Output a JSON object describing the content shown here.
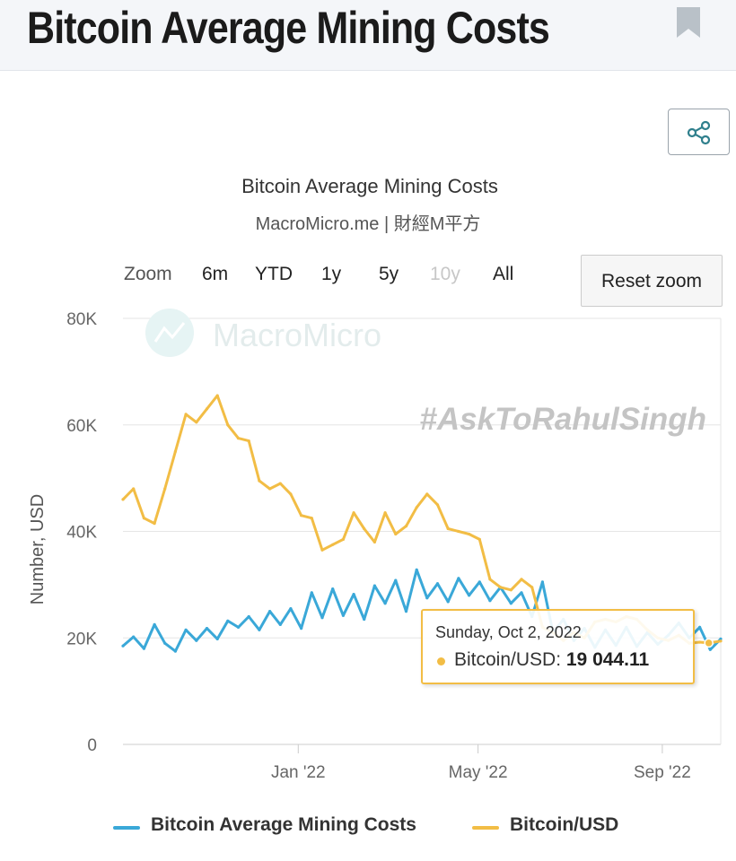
{
  "header": {
    "title": "Bitcoin Average Mining Costs",
    "bookmark_icon": "bookmark-icon"
  },
  "share": {
    "icon": "share-icon",
    "color": "#2f7f8c"
  },
  "chart_header": {
    "title": "Bitcoin Average Mining Costs",
    "subtitle": "MacroMicro.me | 財經M平方"
  },
  "zoom": {
    "label": "Zoom",
    "options": [
      {
        "label": "6m",
        "disabled": false
      },
      {
        "label": "YTD",
        "disabled": false
      },
      {
        "label": "1y",
        "disabled": false
      },
      {
        "label": "5y",
        "disabled": false
      },
      {
        "label": "10y",
        "disabled": true
      },
      {
        "label": "All",
        "disabled": false
      }
    ],
    "reset_label": "Reset zoom"
  },
  "watermarks": {
    "logo": "MacroMicro",
    "tag": "#AskToRahulSingh"
  },
  "tooltip": {
    "date": "Sunday, Oct 2, 2022",
    "series_label": "Bitcoin/USD: ",
    "value": "19 044.11",
    "color": "#f2bd45"
  },
  "legend": {
    "items": [
      {
        "label": "Bitcoin Average Mining Costs",
        "color": "#3aa8d8"
      },
      {
        "label": "Bitcoin/USD",
        "color": "#f2bd45"
      }
    ]
  },
  "chart_data": {
    "type": "line",
    "title": "Bitcoin Average Mining Costs",
    "subtitle": "MacroMicro.me | 財經M平方",
    "ylabel": "Number, USD",
    "xlabel": "",
    "ylim": [
      0,
      80000
    ],
    "xlim": [
      "2021-09-06",
      "2022-10-10"
    ],
    "y_ticks": [
      {
        "value": 0,
        "label": "0"
      },
      {
        "value": 20000,
        "label": "20K"
      },
      {
        "value": 40000,
        "label": "40K"
      },
      {
        "value": 60000,
        "label": "60K"
      },
      {
        "value": 80000,
        "label": "80K"
      }
    ],
    "x_ticks": [
      {
        "date": "2022-01-01",
        "label": "Jan '22"
      },
      {
        "date": "2022-05-01",
        "label": "May '22"
      },
      {
        "date": "2022-09-01",
        "label": "Sep '22"
      }
    ],
    "grid": true,
    "legend_position": "bottom",
    "series": [
      {
        "name": "Bitcoin Average Mining Costs",
        "color": "#3aa8d8",
        "points": [
          [
            "2021-09-06",
            18500
          ],
          [
            "2021-09-13",
            20200
          ],
          [
            "2021-09-20",
            18000
          ],
          [
            "2021-09-27",
            22500
          ],
          [
            "2021-10-04",
            19000
          ],
          [
            "2021-10-11",
            17500
          ],
          [
            "2021-10-18",
            21500
          ],
          [
            "2021-10-25",
            19500
          ],
          [
            "2021-11-01",
            21800
          ],
          [
            "2021-11-08",
            19800
          ],
          [
            "2021-11-15",
            23200
          ],
          [
            "2021-11-22",
            22000
          ],
          [
            "2021-11-29",
            24000
          ],
          [
            "2021-12-06",
            21500
          ],
          [
            "2021-12-13",
            25000
          ],
          [
            "2021-12-20",
            22500
          ],
          [
            "2021-12-27",
            25500
          ],
          [
            "2022-01-03",
            21800
          ],
          [
            "2022-01-10",
            28500
          ],
          [
            "2022-01-17",
            23800
          ],
          [
            "2022-01-24",
            29200
          ],
          [
            "2022-01-31",
            24200
          ],
          [
            "2022-02-07",
            28200
          ],
          [
            "2022-02-14",
            23500
          ],
          [
            "2022-02-21",
            29800
          ],
          [
            "2022-02-28",
            26500
          ],
          [
            "2022-03-07",
            30800
          ],
          [
            "2022-03-14",
            25000
          ],
          [
            "2022-03-21",
            32800
          ],
          [
            "2022-03-28",
            27500
          ],
          [
            "2022-04-04",
            30200
          ],
          [
            "2022-04-11",
            26800
          ],
          [
            "2022-04-18",
            31200
          ],
          [
            "2022-04-25",
            28000
          ],
          [
            "2022-05-02",
            30500
          ],
          [
            "2022-05-09",
            27000
          ],
          [
            "2022-05-16",
            29500
          ],
          [
            "2022-05-23",
            26500
          ],
          [
            "2022-05-30",
            28500
          ],
          [
            "2022-06-06",
            24000
          ],
          [
            "2022-06-13",
            30500
          ],
          [
            "2022-06-20",
            21000
          ],
          [
            "2022-06-27",
            23500
          ],
          [
            "2022-07-04",
            19500
          ],
          [
            "2022-07-11",
            21800
          ],
          [
            "2022-07-18",
            18200
          ],
          [
            "2022-07-25",
            21500
          ],
          [
            "2022-08-01",
            18600
          ],
          [
            "2022-08-08",
            22000
          ],
          [
            "2022-08-15",
            18400
          ],
          [
            "2022-08-22",
            21000
          ],
          [
            "2022-08-29",
            18800
          ],
          [
            "2022-09-05",
            20500
          ],
          [
            "2022-09-12",
            22800
          ],
          [
            "2022-09-19",
            20000
          ],
          [
            "2022-09-26",
            22000
          ],
          [
            "2022-10-03",
            17800
          ],
          [
            "2022-10-10",
            19800
          ]
        ]
      },
      {
        "name": "Bitcoin/USD",
        "color": "#f2bd45",
        "points": [
          [
            "2021-09-06",
            46000
          ],
          [
            "2021-09-13",
            48000
          ],
          [
            "2021-09-20",
            42500
          ],
          [
            "2021-09-27",
            41500
          ],
          [
            "2021-10-04",
            48000
          ],
          [
            "2021-10-11",
            55000
          ],
          [
            "2021-10-18",
            62000
          ],
          [
            "2021-10-25",
            60500
          ],
          [
            "2021-11-01",
            63000
          ],
          [
            "2021-11-08",
            65500
          ],
          [
            "2021-11-15",
            60000
          ],
          [
            "2021-11-22",
            57500
          ],
          [
            "2021-11-29",
            57000
          ],
          [
            "2021-12-06",
            49500
          ],
          [
            "2021-12-13",
            48000
          ],
          [
            "2021-12-20",
            49000
          ],
          [
            "2021-12-27",
            47000
          ],
          [
            "2022-01-03",
            43000
          ],
          [
            "2022-01-10",
            42500
          ],
          [
            "2022-01-17",
            36500
          ],
          [
            "2022-01-24",
            37500
          ],
          [
            "2022-01-31",
            38500
          ],
          [
            "2022-02-07",
            43500
          ],
          [
            "2022-02-14",
            40500
          ],
          [
            "2022-02-21",
            38000
          ],
          [
            "2022-02-28",
            43500
          ],
          [
            "2022-03-07",
            39500
          ],
          [
            "2022-03-14",
            41000
          ],
          [
            "2022-03-21",
            44500
          ],
          [
            "2022-03-28",
            47000
          ],
          [
            "2022-04-04",
            45000
          ],
          [
            "2022-04-11",
            40500
          ],
          [
            "2022-04-18",
            40000
          ],
          [
            "2022-04-25",
            39500
          ],
          [
            "2022-05-02",
            38500
          ],
          [
            "2022-05-09",
            31000
          ],
          [
            "2022-05-16",
            29500
          ],
          [
            "2022-05-23",
            29000
          ],
          [
            "2022-05-30",
            31000
          ],
          [
            "2022-06-06",
            29500
          ],
          [
            "2022-06-13",
            22000
          ],
          [
            "2022-06-20",
            21000
          ],
          [
            "2022-06-27",
            19500
          ],
          [
            "2022-07-04",
            21000
          ],
          [
            "2022-07-11",
            20000
          ],
          [
            "2022-07-18",
            23000
          ],
          [
            "2022-07-25",
            23500
          ],
          [
            "2022-08-01",
            23000
          ],
          [
            "2022-08-08",
            24000
          ],
          [
            "2022-08-15",
            23500
          ],
          [
            "2022-08-22",
            21500
          ],
          [
            "2022-08-29",
            20000
          ],
          [
            "2022-09-05",
            19500
          ],
          [
            "2022-09-12",
            20500
          ],
          [
            "2022-09-19",
            19000
          ],
          [
            "2022-09-26",
            19200
          ],
          [
            "2022-10-02",
            19044.11
          ],
          [
            "2022-10-10",
            19400
          ]
        ]
      }
    ]
  }
}
